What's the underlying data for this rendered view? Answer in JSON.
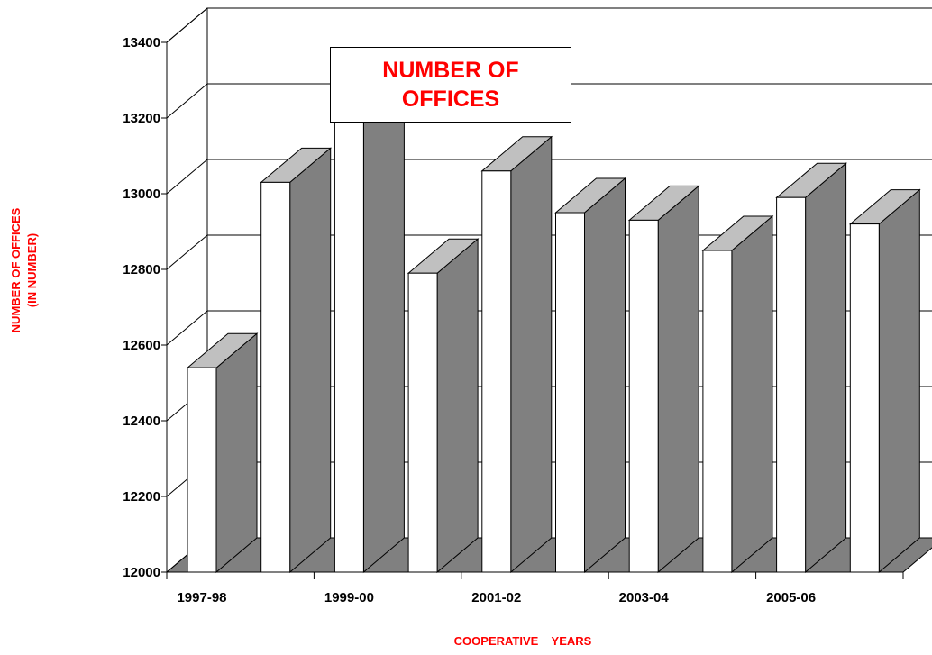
{
  "chart_data": {
    "type": "bar3d",
    "title": "NUMBER OF OFFICES",
    "ylabel": [
      "NUMBER OF OFFICES",
      "(IN NUMBER)"
    ],
    "xlabel": "COOPERATIVE    YEARS",
    "categories": [
      "1997-98",
      null,
      "1999-00",
      null,
      "2001-02",
      null,
      "2003-04",
      null,
      "2005-06",
      null
    ],
    "values": [
      12540,
      13030,
      13230,
      12790,
      13060,
      12950,
      12930,
      12850,
      12990,
      12920
    ],
    "colors": {
      "front": "#ffffff",
      "side": "#808080",
      "top": "#c0c0c0",
      "floor": "#808080"
    },
    "ylim": [
      12000,
      13400
    ],
    "yticks": [
      12000,
      12200,
      12400,
      12600,
      12800,
      13000,
      13200,
      13400
    ],
    "grid": true
  }
}
